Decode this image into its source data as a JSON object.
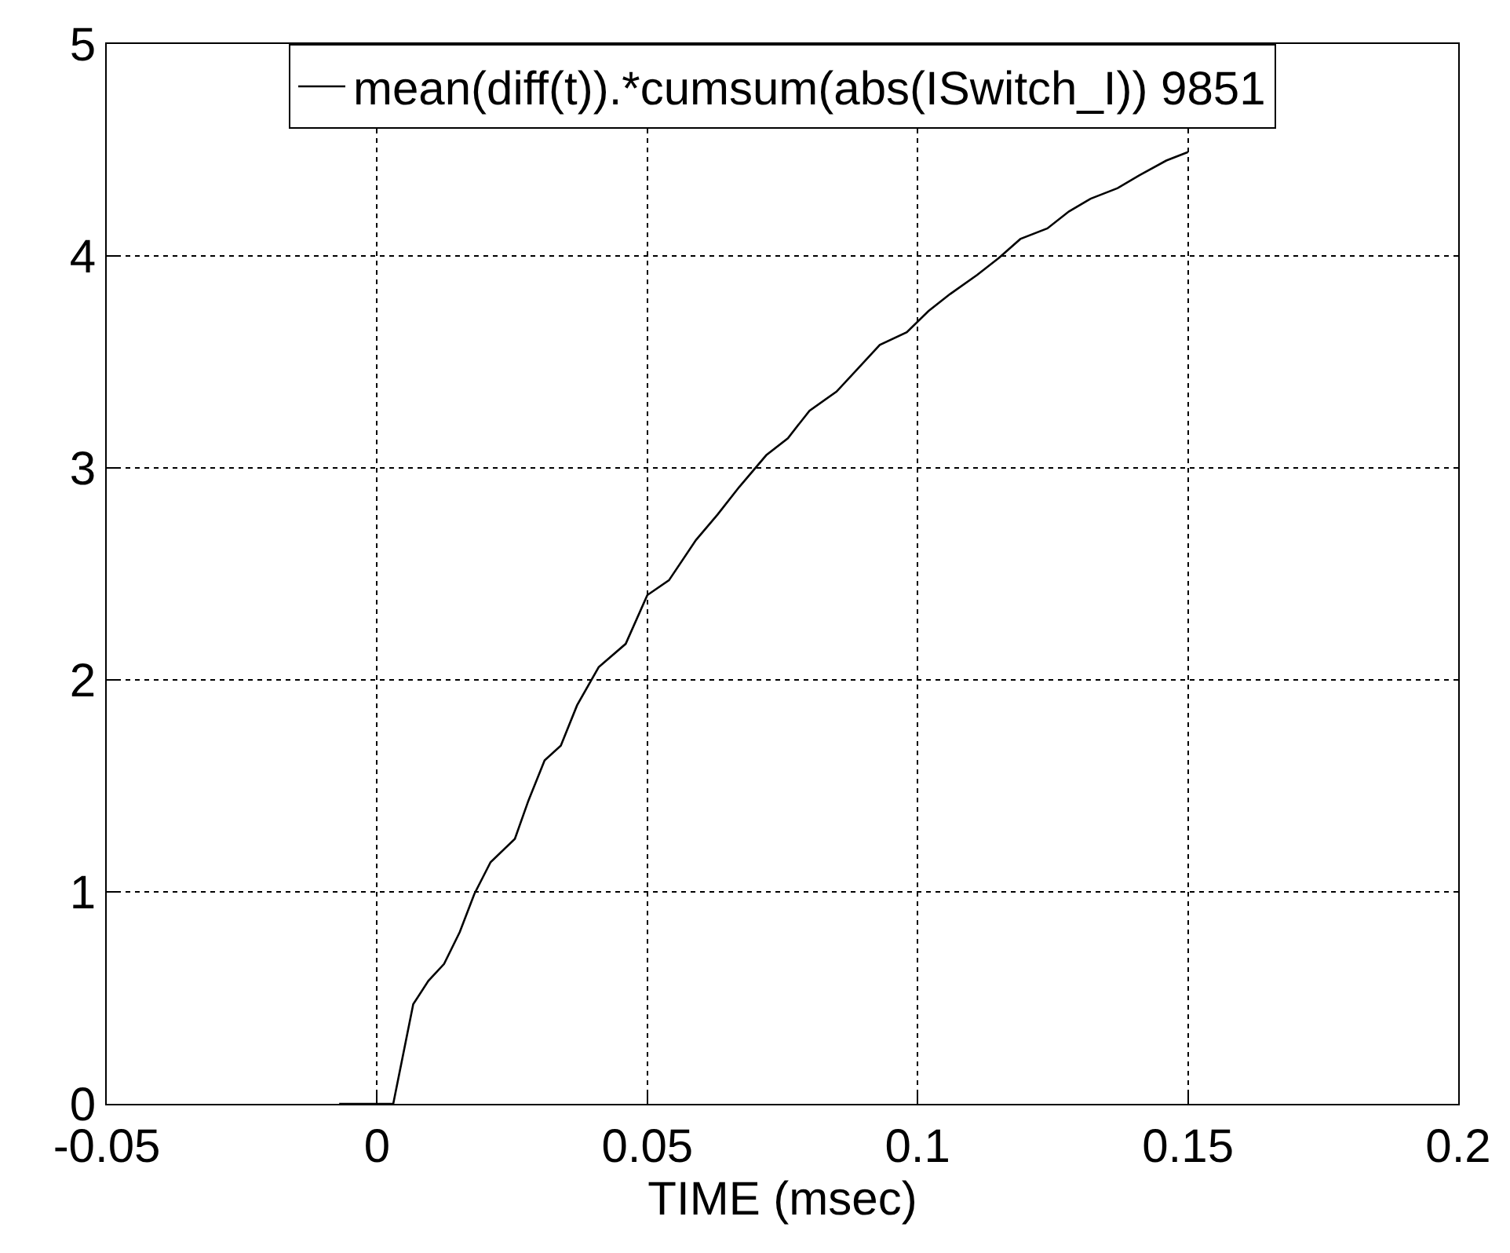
{
  "chart_data": {
    "type": "line",
    "xlabel": "TIME (msec)",
    "xlim": [
      -0.05,
      0.2
    ],
    "ylim": [
      0,
      5
    ],
    "xticks": [
      -0.05,
      0,
      0.05,
      0.1,
      0.15,
      0.2
    ],
    "yticks": [
      0,
      1,
      2,
      3,
      4,
      5
    ],
    "grid": true,
    "legend": "top",
    "marker": "none",
    "line_style": "solid",
    "series": [
      {
        "name": "mean(diff(t)).*cumsum(abs(ISwitch_I)) 9851",
        "color": "#000000",
        "x": [
          -0.007,
          0.003,
          0.0067,
          0.0095,
          0.0124,
          0.0153,
          0.018,
          0.021,
          0.0255,
          0.028,
          0.031,
          0.034,
          0.037,
          0.041,
          0.046,
          0.05,
          0.054,
          0.059,
          0.063,
          0.067,
          0.072,
          0.076,
          0.08,
          0.085,
          0.089,
          0.093,
          0.098,
          0.102,
          0.106,
          0.111,
          0.115,
          0.119,
          0.124,
          0.128,
          0.132,
          0.137,
          0.141,
          0.146,
          0.15
        ],
        "values": [
          0,
          0,
          0.47,
          0.58,
          0.66,
          0.81,
          0.99,
          1.14,
          1.25,
          1.43,
          1.62,
          1.69,
          1.88,
          2.06,
          2.17,
          2.4,
          2.47,
          2.66,
          2.78,
          2.91,
          3.06,
          3.14,
          3.27,
          3.36,
          3.47,
          3.58,
          3.64,
          3.74,
          3.82,
          3.91,
          3.99,
          4.08,
          4.13,
          4.21,
          4.27,
          4.32,
          4.38,
          4.45,
          4.49
        ]
      }
    ]
  }
}
